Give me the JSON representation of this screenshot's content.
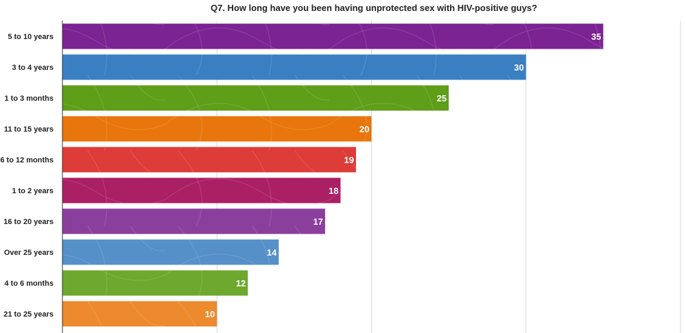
{
  "chart_data": {
    "type": "bar",
    "orientation": "horizontal",
    "title": "Q7. How long have you been having unprotected sex with HIV-positive guys?",
    "categories": [
      "5 to 10 years",
      "3 to 4 years",
      "1 to 3 months",
      "11 to 15 years",
      "6 to 12 months",
      "1 to 2 years",
      "16 to 20 years",
      "Over 25 years",
      "4 to 6 months",
      "21 to 25 years"
    ],
    "values": [
      35,
      30,
      25,
      20,
      19,
      18,
      17,
      14,
      12,
      10
    ],
    "colors": [
      "#7b2392",
      "#3a7fc2",
      "#5e9e18",
      "#e8760c",
      "#dd3c39",
      "#ab1f65",
      "#8b3f9c",
      "#5590c8",
      "#6ea82e",
      "#ec8a2d"
    ],
    "xlim": [
      0,
      40
    ],
    "grid": true,
    "legend": "none"
  }
}
